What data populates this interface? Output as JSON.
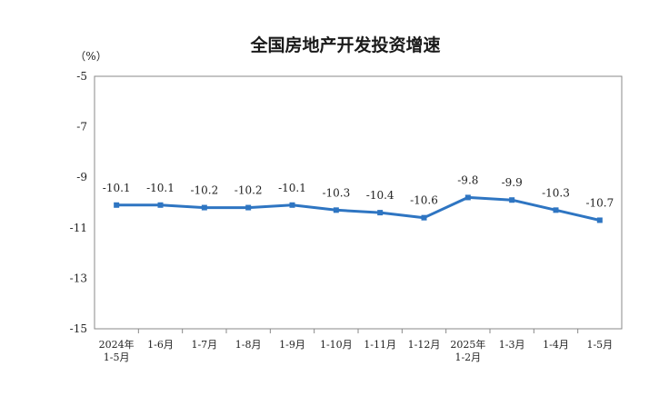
{
  "chart_data": {
    "type": "line",
    "title": "全国房地产开发投资增速",
    "ylabel": "（%）",
    "xlabel": "",
    "ylim": [
      -15,
      -5
    ],
    "yticks": [
      "-5",
      "-7",
      "-9",
      "-11",
      "-13",
      "-15"
    ],
    "categories": [
      [
        "2024年",
        "1-5月"
      ],
      [
        "1-6月"
      ],
      [
        "1-7月"
      ],
      [
        "1-8月"
      ],
      [
        "1-9月"
      ],
      [
        "1-10月"
      ],
      [
        "1-11月"
      ],
      [
        "1-12月"
      ],
      [
        "2025年",
        "1-2月"
      ],
      [
        "1-3月"
      ],
      [
        "1-4月"
      ],
      [
        "1-5月"
      ]
    ],
    "series": [
      {
        "values": [
          -10.1,
          -10.1,
          -10.2,
          -10.2,
          -10.1,
          -10.3,
          -10.4,
          -10.6,
          -9.8,
          -9.9,
          -10.3,
          -10.7
        ],
        "labels": [
          "-10.1",
          "-10.1",
          "-10.2",
          "-10.2",
          "-10.1",
          "-10.3",
          "-10.4",
          "-10.6",
          "-9.8",
          "-9.9",
          "-10.3",
          "-10.7"
        ],
        "color": "#2e75c2"
      }
    ],
    "grid": false,
    "legend": "none"
  }
}
